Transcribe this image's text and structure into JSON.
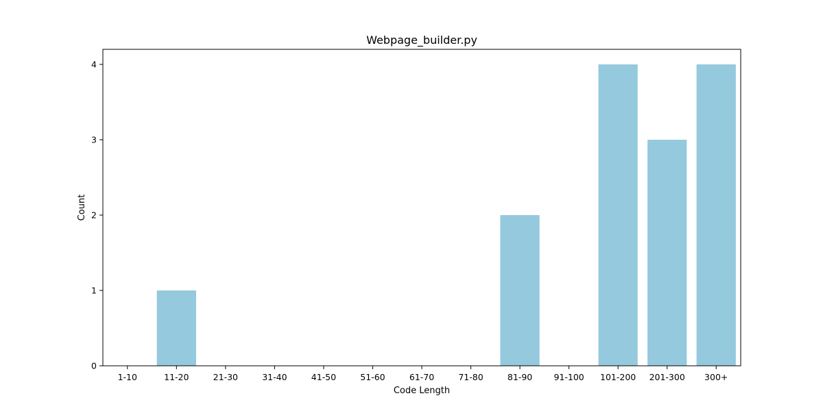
{
  "chart_data": {
    "type": "bar",
    "title": "Webpage_builder.py",
    "xlabel": "Code Length",
    "ylabel": "Count",
    "categories": [
      "1-10",
      "11-20",
      "21-30",
      "31-40",
      "41-50",
      "51-60",
      "61-70",
      "71-80",
      "81-90",
      "91-100",
      "101-200",
      "201-300",
      "300+"
    ],
    "values": [
      0,
      1,
      0,
      0,
      0,
      0,
      0,
      0,
      2,
      0,
      4,
      3,
      4
    ],
    "ylim": [
      0,
      4.2
    ],
    "yticks": [
      0,
      1,
      2,
      3,
      4
    ],
    "grid": false,
    "bar_color": "#95c9dd"
  }
}
